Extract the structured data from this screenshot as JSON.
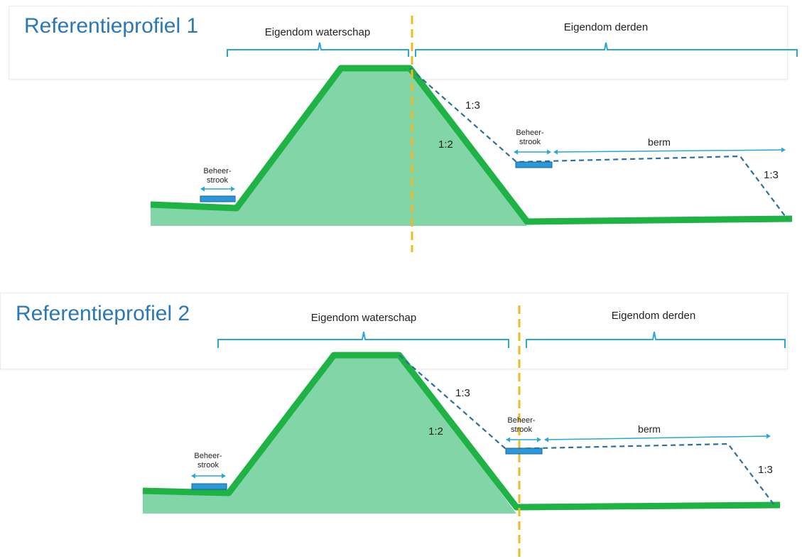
{
  "colors": {
    "dike_fill": "#82d5a6",
    "dike_stroke": "#1fb345",
    "bracket": "#2aa6d8",
    "dashed": "#2c6f9e",
    "boundary": "#f2b926",
    "strip_fill": "#2b98d9",
    "arrow": "#2aa6d8",
    "title": "#2a78b8"
  },
  "profile1": {
    "title": "Referentieprofiel 1",
    "owner_water": "Eigendom waterschap",
    "owner_third": "Eigendom derden",
    "slope_dashed": "1:3",
    "slope_solid": "1:2",
    "slope_berm": "1:3",
    "strip_left": [
      "Beheer-",
      "strook"
    ],
    "strip_right": [
      "Beheer-",
      "strook"
    ],
    "berm": "berm"
  },
  "profile2": {
    "title": "Referentieprofiel 2",
    "owner_water": "Eigendom waterschap",
    "owner_third": "Eigendom derden",
    "slope_dashed": "1:3",
    "slope_solid": "1:2",
    "slope_berm": "1:3",
    "strip_left": [
      "Beheer-",
      "strook"
    ],
    "strip_right": [
      "Beheer-",
      "strook"
    ],
    "berm": "berm"
  }
}
